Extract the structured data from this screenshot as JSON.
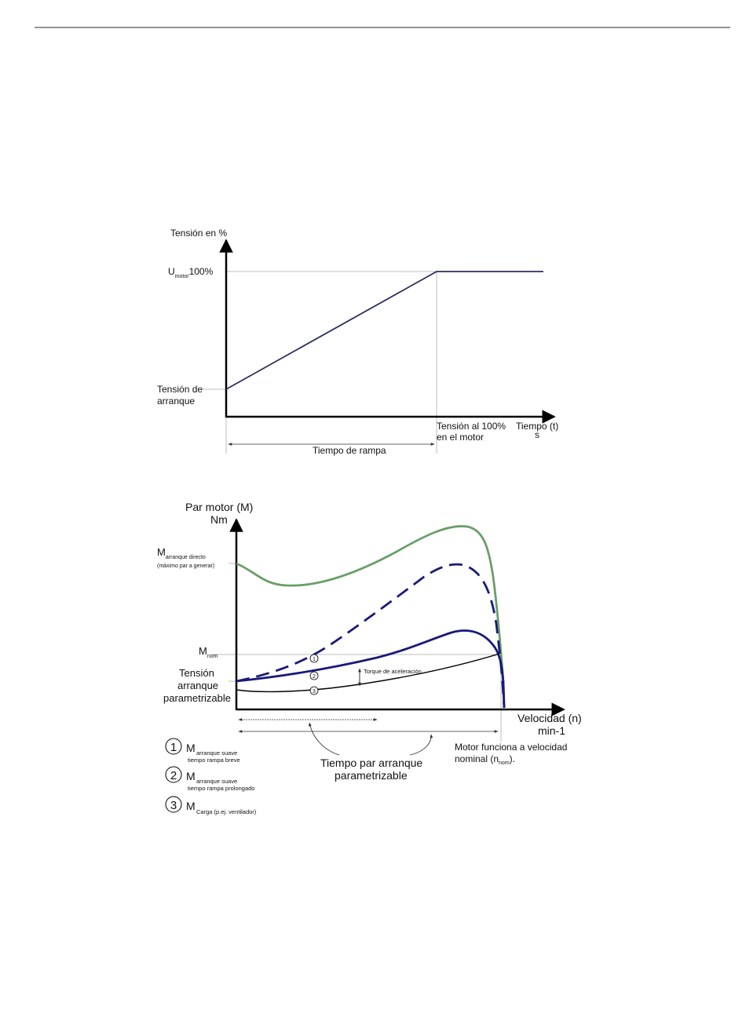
{
  "colors": {
    "ramp_line": "#2e2e5e",
    "direct_start_curve": "#6a9f6a",
    "soft_start_curve": "#1a1a7a",
    "load_curve": "#000000",
    "guide_line": "#bdbdbd"
  },
  "chart_1": {
    "y_axis_label": "Tensión en %",
    "u_motor_main": "U",
    "u_motor_sub": "motor",
    "u_motor_value": "100%",
    "start_voltage_line1": "Tensión de",
    "start_voltage_line2": "arranque",
    "full_voltage_line1": "Tensión al 100%",
    "full_voltage_line2": "en el motor",
    "x_axis_label": "Tiempo (t)",
    "x_axis_unit": "s",
    "ramp_time_label": "Tiempo de rampa"
  },
  "chart_2": {
    "y_axis_label_line1": "Par motor (M)",
    "y_axis_label_line2": "Nm",
    "direct_start_main": "M",
    "direct_start_sub": "arranque directo",
    "direct_start_note": "(máximo par a generar)",
    "m_nom_main": "M",
    "m_nom_sub": "nom",
    "param_voltage_line1": "Tensión",
    "param_voltage_line2": "arranque",
    "param_voltage_line3": "parametrizable",
    "accel_torque_label": "Torque de aceleración",
    "x_axis_label": "Velocidad (n)",
    "x_axis_unit": "min-1",
    "nominal_speed_line1": "Motor funciona a velocidad",
    "nominal_speed_line2_pre": "nominal (n",
    "nominal_speed_line2_sub": "nom",
    "nominal_speed_line2_post": ").",
    "param_time_line1": "Tiempo par arranque",
    "param_time_line2": "parametrizable",
    "curve_markers": [
      "1",
      "2",
      "3"
    ]
  },
  "legend": [
    {
      "number": "1",
      "main": "M",
      "sub_line1": "arranque suave",
      "sub_line2": "tiempo rampa breve"
    },
    {
      "number": "2",
      "main": "M",
      "sub_line1": "arranque suave",
      "sub_line2": "tiempo rampa prolongado"
    },
    {
      "number": "3",
      "main": "M",
      "sub_line1": "Carga (p.ej. ventilador)",
      "sub_line2": ""
    }
  ]
}
